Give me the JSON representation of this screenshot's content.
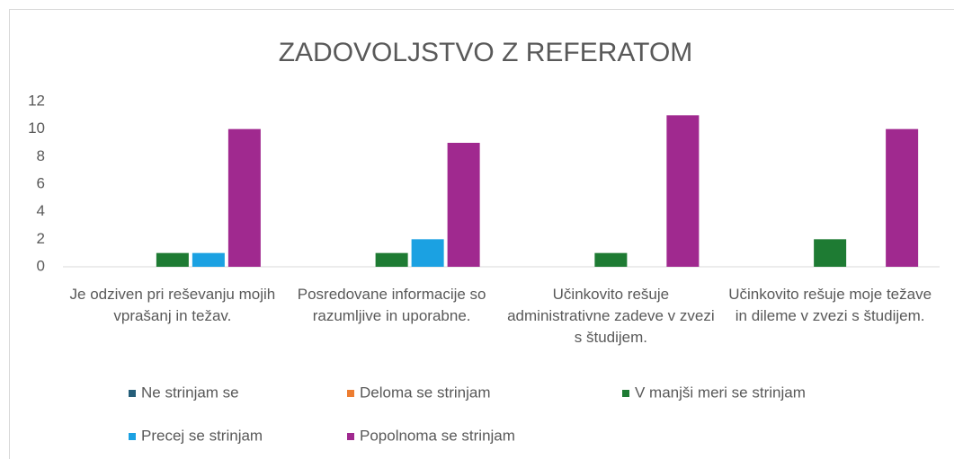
{
  "chart_data": {
    "type": "bar",
    "title": "ZADOVOLJSTVO Z REFERATOM",
    "categories": [
      "Je odziven pri reševanju mojih vprašanj in težav.",
      "Posredovane informacije so razumljive in uporabne.",
      "Učinkovito rešuje administrativne zadeve v zvezi s študijem.",
      "Učinkovito rešuje moje težave in dileme v zvezi s študijem."
    ],
    "series": [
      {
        "name": "Ne strinjam se",
        "color": "#255e79",
        "values": [
          0,
          0,
          0,
          0
        ]
      },
      {
        "name": "Deloma se strinjam",
        "color": "#ed7d31",
        "values": [
          0,
          0,
          0,
          0
        ]
      },
      {
        "name": "V manjši meri se strinjam",
        "color": "#1e7b33",
        "values": [
          1,
          1,
          1,
          2
        ]
      },
      {
        "name": "Precej se strinjam",
        "color": "#1ba1e2",
        "values": [
          1,
          2,
          0,
          0
        ]
      },
      {
        "name": "Popolnoma se strinjam",
        "color": "#a0298f",
        "values": [
          10,
          9,
          11,
          10
        ]
      }
    ],
    "ylim": [
      0,
      12
    ],
    "yticks": [
      0,
      2,
      4,
      6,
      8,
      10,
      12
    ],
    "grid": false,
    "legend": "bottom"
  }
}
